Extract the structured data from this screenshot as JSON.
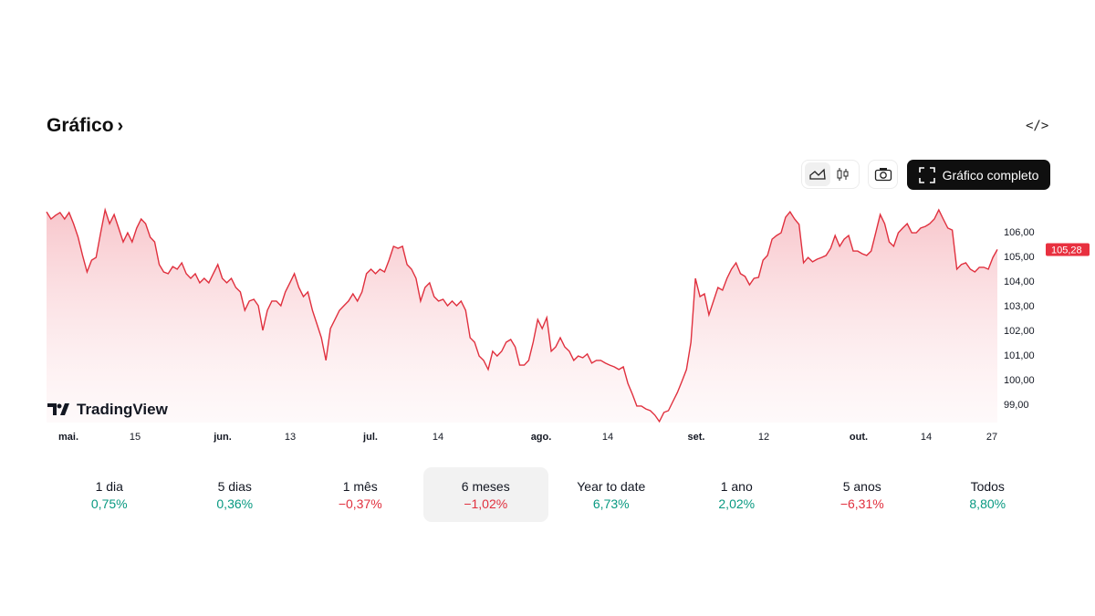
{
  "header": {
    "title": "Gráfico",
    "title_chevron": "›",
    "embed_icon": "code-icon"
  },
  "toolbar": {
    "area_icon": "area-chart-icon",
    "candle_icon": "candlestick-icon",
    "camera_icon": "camera-icon",
    "full_label": "Gráfico completo",
    "full_icon": "fullscreen-icon"
  },
  "brand": "TradingView",
  "colors": {
    "line": "#e0303e",
    "fill": "#f7c6cb",
    "up": "#089981",
    "down": "#e0303e",
    "badge": "#e8303f"
  },
  "chart_data": {
    "type": "area",
    "xlabel": "",
    "ylabel": "",
    "x_ticks": [
      {
        "label": "mai.",
        "bold": true
      },
      {
        "label": "15"
      },
      {
        "label": "jun.",
        "bold": true
      },
      {
        "label": "13"
      },
      {
        "label": "jul.",
        "bold": true
      },
      {
        "label": "14"
      },
      {
        "label": "ago.",
        "bold": true
      },
      {
        "label": "14"
      },
      {
        "label": "set.",
        "bold": true
      },
      {
        "label": "12"
      },
      {
        "label": "out.",
        "bold": true
      },
      {
        "label": "14"
      },
      {
        "label": "27"
      }
    ],
    "y_ticks": [
      "99,00",
      "100,00",
      "101,00",
      "102,00",
      "103,00",
      "104,00",
      "105,00",
      "106,00"
    ],
    "ylim": [
      98.3,
      106.9
    ],
    "last_price": "105,28",
    "grid": false,
    "values": [
      106.81,
      106.52,
      106.67,
      106.78,
      106.52,
      106.78,
      106.33,
      105.78,
      105.04,
      104.37,
      104.85,
      104.96,
      105.96,
      106.89,
      106.33,
      106.7,
      106.15,
      105.59,
      105.96,
      105.59,
      106.15,
      106.52,
      106.33,
      105.78,
      105.59,
      104.67,
      104.37,
      104.3,
      104.59,
      104.48,
      104.74,
      104.3,
      104.11,
      104.3,
      103.93,
      104.11,
      103.93,
      104.3,
      104.67,
      104.11,
      103.93,
      104.11,
      103.74,
      103.56,
      102.81,
      103.19,
      103.26,
      103.0,
      102.0,
      102.81,
      103.19,
      103.19,
      103.0,
      103.56,
      103.93,
      104.3,
      103.74,
      103.37,
      103.56,
      102.81,
      102.26,
      101.7,
      100.78,
      102.07,
      102.44,
      102.81,
      103.0,
      103.19,
      103.48,
      103.19,
      103.56,
      104.3,
      104.48,
      104.3,
      104.48,
      104.37,
      104.85,
      105.41,
      105.33,
      105.41,
      104.67,
      104.48,
      104.11,
      103.19,
      103.74,
      103.93,
      103.37,
      103.19,
      103.26,
      103.0,
      103.19,
      103.0,
      103.19,
      102.81,
      101.7,
      101.52,
      100.96,
      100.78,
      100.41,
      101.15,
      100.96,
      101.15,
      101.52,
      101.63,
      101.33,
      100.59,
      100.59,
      100.78,
      101.52,
      102.44,
      102.07,
      102.52,
      101.15,
      101.33,
      101.7,
      101.33,
      101.15,
      100.78,
      100.96,
      100.89,
      101.04,
      100.67,
      100.78,
      100.78,
      100.67,
      100.59,
      100.52,
      100.41,
      100.52,
      99.85,
      99.41,
      98.93,
      98.93,
      98.81,
      98.74,
      98.56,
      98.3,
      98.67,
      98.74,
      99.11,
      99.48,
      99.93,
      100.41,
      101.52,
      104.11,
      103.37,
      103.48,
      102.63,
      103.19,
      103.74,
      103.63,
      104.11,
      104.48,
      104.74,
      104.3,
      104.19,
      103.85,
      104.11,
      104.15,
      104.85,
      105.04,
      105.7,
      105.85,
      105.96,
      106.59,
      106.81,
      106.52,
      106.3,
      104.74,
      104.96,
      104.78,
      104.89,
      104.96,
      105.04,
      105.33,
      105.85,
      105.41,
      105.7,
      105.85,
      105.22,
      105.22,
      105.11,
      105.04,
      105.22,
      105.96,
      106.7,
      106.33,
      105.59,
      105.41,
      105.96,
      106.15,
      106.33,
      105.96,
      105.96,
      106.15,
      106.22,
      106.33,
      106.52,
      106.89,
      106.52,
      106.15,
      106.07,
      104.48,
      104.67,
      104.74,
      104.48,
      104.37,
      104.56,
      104.56,
      104.48,
      104.96,
      105.28
    ]
  },
  "periods": [
    {
      "label": "1 dia",
      "change": "0,75%",
      "dir": "up"
    },
    {
      "label": "5 dias",
      "change": "0,36%",
      "dir": "up"
    },
    {
      "label": "1 mês",
      "change": "−0,37%",
      "dir": "down"
    },
    {
      "label": "6 meses",
      "change": "−1,02%",
      "dir": "down",
      "selected": true
    },
    {
      "label": "Year to date",
      "change": "6,73%",
      "dir": "up"
    },
    {
      "label": "1 ano",
      "change": "2,02%",
      "dir": "up"
    },
    {
      "label": "5 anos",
      "change": "−6,31%",
      "dir": "down"
    },
    {
      "label": "Todos",
      "change": "8,80%",
      "dir": "up"
    }
  ]
}
